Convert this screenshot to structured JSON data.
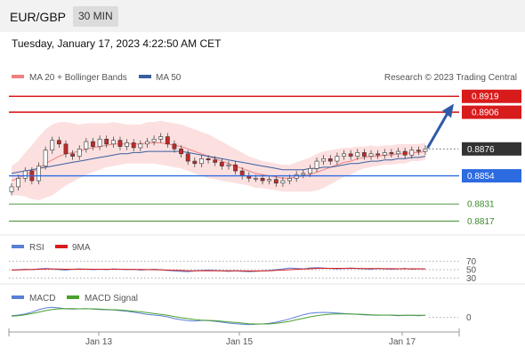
{
  "header": {
    "pair": "EUR/GBP",
    "timeframe": "30 MIN"
  },
  "datetime": "Tuesday, January 17, 2023 4:22:50 AM CET",
  "legend": {
    "ma20": {
      "label": "MA 20 + Bollinger Bands",
      "color": "#f08080"
    },
    "ma50": {
      "label": "MA 50",
      "color": "#3a5f9e"
    }
  },
  "copyright": "Research © 2023 Trading Central",
  "rsi_legend": {
    "rsi": "RSI",
    "ma": "9MA"
  },
  "macd_legend": {
    "macd": "MACD",
    "signal": "MACD Signal"
  },
  "chart_data": {
    "type": "candlestick",
    "x_ticks": [
      "Jan 13",
      "Jan 15",
      "Jan 17"
    ],
    "price_ylim": [
      0.881,
      0.8925
    ],
    "last_price": 0.8876,
    "levels": [
      {
        "value": 0.8919,
        "label": "0.8919",
        "role": "resistance",
        "color": "#d81b1b"
      },
      {
        "value": 0.8906,
        "label": "0.8906",
        "role": "resistance",
        "color": "#d81b1b"
      },
      {
        "value": 0.8876,
        "label": "0.8876",
        "role": "last",
        "color": "#333333"
      },
      {
        "value": 0.8854,
        "label": "0.8854",
        "role": "pivot",
        "color": "#2d6be0"
      },
      {
        "value": 0.8831,
        "label": "0.8831",
        "role": "support",
        "color": "#3a8a2a"
      },
      {
        "value": 0.8817,
        "label": "0.8817",
        "role": "support",
        "color": "#3a8a2a"
      }
    ],
    "close": [
      0.8845,
      0.8852,
      0.8858,
      0.885,
      0.8862,
      0.8875,
      0.8883,
      0.888,
      0.8872,
      0.887,
      0.8876,
      0.8882,
      0.8878,
      0.8884,
      0.888,
      0.8883,
      0.8878,
      0.8881,
      0.8877,
      0.888,
      0.8882,
      0.8884,
      0.8886,
      0.888,
      0.8876,
      0.8872,
      0.8866,
      0.8864,
      0.8868,
      0.8867,
      0.8865,
      0.8862,
      0.8863,
      0.8858,
      0.8854,
      0.8852,
      0.8852,
      0.885,
      0.8851,
      0.8848,
      0.885,
      0.8852,
      0.8855,
      0.8856,
      0.886,
      0.8866,
      0.8868,
      0.8866,
      0.887,
      0.8872,
      0.887,
      0.8873,
      0.887,
      0.8872,
      0.8871,
      0.8873,
      0.8872,
      0.8874,
      0.8871,
      0.8875,
      0.8874,
      0.8876
    ],
    "ma20": [
      0.885,
      0.8852,
      0.8855,
      0.8857,
      0.886,
      0.8864,
      0.8867,
      0.887,
      0.8872,
      0.8873,
      0.8874,
      0.8876,
      0.8877,
      0.8878,
      0.8879,
      0.888,
      0.888,
      0.888,
      0.888,
      0.888,
      0.8881,
      0.8881,
      0.8881,
      0.888,
      0.8879,
      0.8878,
      0.8876,
      0.8874,
      0.8872,
      0.887,
      0.8868,
      0.8866,
      0.8864,
      0.8862,
      0.886,
      0.8858,
      0.8856,
      0.8855,
      0.8854,
      0.8853,
      0.8852,
      0.8852,
      0.8853,
      0.8854,
      0.8855,
      0.8857,
      0.8859,
      0.8861,
      0.8863,
      0.8865,
      0.8866,
      0.8868,
      0.8869,
      0.887,
      0.887,
      0.8871,
      0.8871,
      0.8872,
      0.8872,
      0.8873,
      0.8873,
      0.8874
    ],
    "ma50": [
      0.8856,
      0.8857,
      0.8858,
      0.8859,
      0.886,
      0.8861,
      0.8862,
      0.8863,
      0.8864,
      0.8865,
      0.8866,
      0.8867,
      0.8868,
      0.8869,
      0.887,
      0.8871,
      0.8872,
      0.8872,
      0.8873,
      0.8873,
      0.8874,
      0.8874,
      0.8874,
      0.8874,
      0.8874,
      0.8874,
      0.8873,
      0.8872,
      0.8871,
      0.887,
      0.8869,
      0.8868,
      0.8867,
      0.8866,
      0.8865,
      0.8864,
      0.8863,
      0.8862,
      0.8861,
      0.886,
      0.8859,
      0.8859,
      0.8859,
      0.8859,
      0.886,
      0.886,
      0.8861,
      0.8861,
      0.8862,
      0.8863,
      0.8864,
      0.8864,
      0.8865,
      0.8866,
      0.8866,
      0.8867,
      0.8867,
      0.8868,
      0.8868,
      0.8869,
      0.8869,
      0.887
    ],
    "bb_width": [
      0.0012,
      0.0014,
      0.0018,
      0.0022,
      0.0026,
      0.0028,
      0.0029,
      0.0028,
      0.0026,
      0.0024,
      0.0022,
      0.0021,
      0.002,
      0.0019,
      0.0018,
      0.0018,
      0.0017,
      0.0016,
      0.0016,
      0.0016,
      0.0017,
      0.0017,
      0.0018,
      0.0018,
      0.0018,
      0.0018,
      0.0018,
      0.0018,
      0.0018,
      0.0018,
      0.0017,
      0.0016,
      0.0015,
      0.0014,
      0.0013,
      0.0012,
      0.0012,
      0.0011,
      0.0011,
      0.0011,
      0.0011,
      0.0011,
      0.0012,
      0.0013,
      0.0014,
      0.0015,
      0.0015,
      0.0014,
      0.0013,
      0.0012,
      0.0011,
      0.001,
      0.0009,
      0.0009,
      0.0008,
      0.0008,
      0.0008,
      0.0008,
      0.0008,
      0.0007,
      0.0007,
      0.0007
    ],
    "projection": {
      "from": 0.8876,
      "to": 0.8913
    },
    "rsi": {
      "ylim": [
        20,
        80
      ],
      "levels": [
        70,
        50,
        30
      ],
      "level_labels": [
        "70",
        "50",
        "30"
      ],
      "values": [
        49,
        50,
        51,
        50,
        52,
        53,
        52,
        50,
        49,
        51,
        52,
        51,
        50,
        51,
        50,
        52,
        51,
        50,
        51,
        49,
        50,
        51,
        50,
        48,
        47,
        46,
        45,
        47,
        48,
        49,
        48,
        47,
        46,
        47,
        46,
        45,
        46,
        47,
        48,
        50,
        52,
        54,
        53,
        52,
        54,
        55,
        54,
        53,
        52,
        53,
        54,
        53,
        52,
        51,
        53,
        52,
        51,
        52,
        53,
        51,
        52,
        52
      ],
      "ma": [
        49,
        49.5,
        50,
        50.5,
        51,
        51.5,
        51.5,
        51.5,
        51,
        51,
        51,
        51.2,
        51,
        51,
        51,
        51,
        51,
        50.8,
        50.5,
        50.4,
        50.2,
        50,
        49.6,
        49,
        48.5,
        48,
        47.5,
        47.2,
        47.2,
        47.4,
        47.5,
        47.5,
        47.4,
        47.2,
        47,
        46.8,
        46.8,
        47,
        47.5,
        48.2,
        49,
        50,
        50.8,
        51.5,
        52.2,
        53,
        53.2,
        53.3,
        53.2,
        53.1,
        53.1,
        53,
        52.8,
        52.6,
        52.5,
        52.4,
        52.3,
        52.2,
        52.2,
        52.1,
        52.1,
        52
      ]
    },
    "macd": {
      "zero_label": "0",
      "values": [
        0.6,
        0.8,
        1.2,
        1.8,
        2.6,
        3.2,
        3.4,
        3.2,
        2.9,
        2.8,
        2.9,
        3.0,
        2.8,
        2.7,
        2.6,
        2.5,
        2.3,
        2.1,
        1.8,
        1.4,
        1.0,
        0.8,
        0.6,
        0.2,
        -0.4,
        -0.8,
        -1.1,
        -1.2,
        -1.0,
        -1.1,
        -1.3,
        -1.6,
        -1.9,
        -2.1,
        -2.3,
        -2.4,
        -2.3,
        -2.2,
        -2.0,
        -1.6,
        -1.1,
        -0.5,
        0.2,
        0.9,
        1.4,
        1.6,
        1.7,
        1.6,
        1.5,
        1.3,
        1.2,
        1.0,
        0.9,
        0.8,
        0.7,
        0.8,
        0.7,
        0.6,
        0.7,
        0.7,
        0.6,
        0.7
      ],
      "signal": [
        0.4,
        0.6,
        0.9,
        1.3,
        1.8,
        2.3,
        2.7,
        2.9,
        3.0,
        3.0,
        2.9,
        2.9,
        2.9,
        2.8,
        2.7,
        2.6,
        2.5,
        2.3,
        2.1,
        1.9,
        1.6,
        1.3,
        1.0,
        0.7,
        0.3,
        -0.1,
        -0.4,
        -0.7,
        -0.9,
        -1.0,
        -1.1,
        -1.3,
        -1.5,
        -1.7,
        -1.9,
        -2.1,
        -2.2,
        -2.2,
        -2.2,
        -2.0,
        -1.7,
        -1.3,
        -0.8,
        -0.3,
        0.2,
        0.6,
        0.9,
        1.1,
        1.2,
        1.2,
        1.2,
        1.1,
        1.0,
        0.9,
        0.8,
        0.8,
        0.8,
        0.7,
        0.7,
        0.7,
        0.7,
        0.7
      ],
      "ylim": [
        -4,
        5
      ]
    }
  }
}
